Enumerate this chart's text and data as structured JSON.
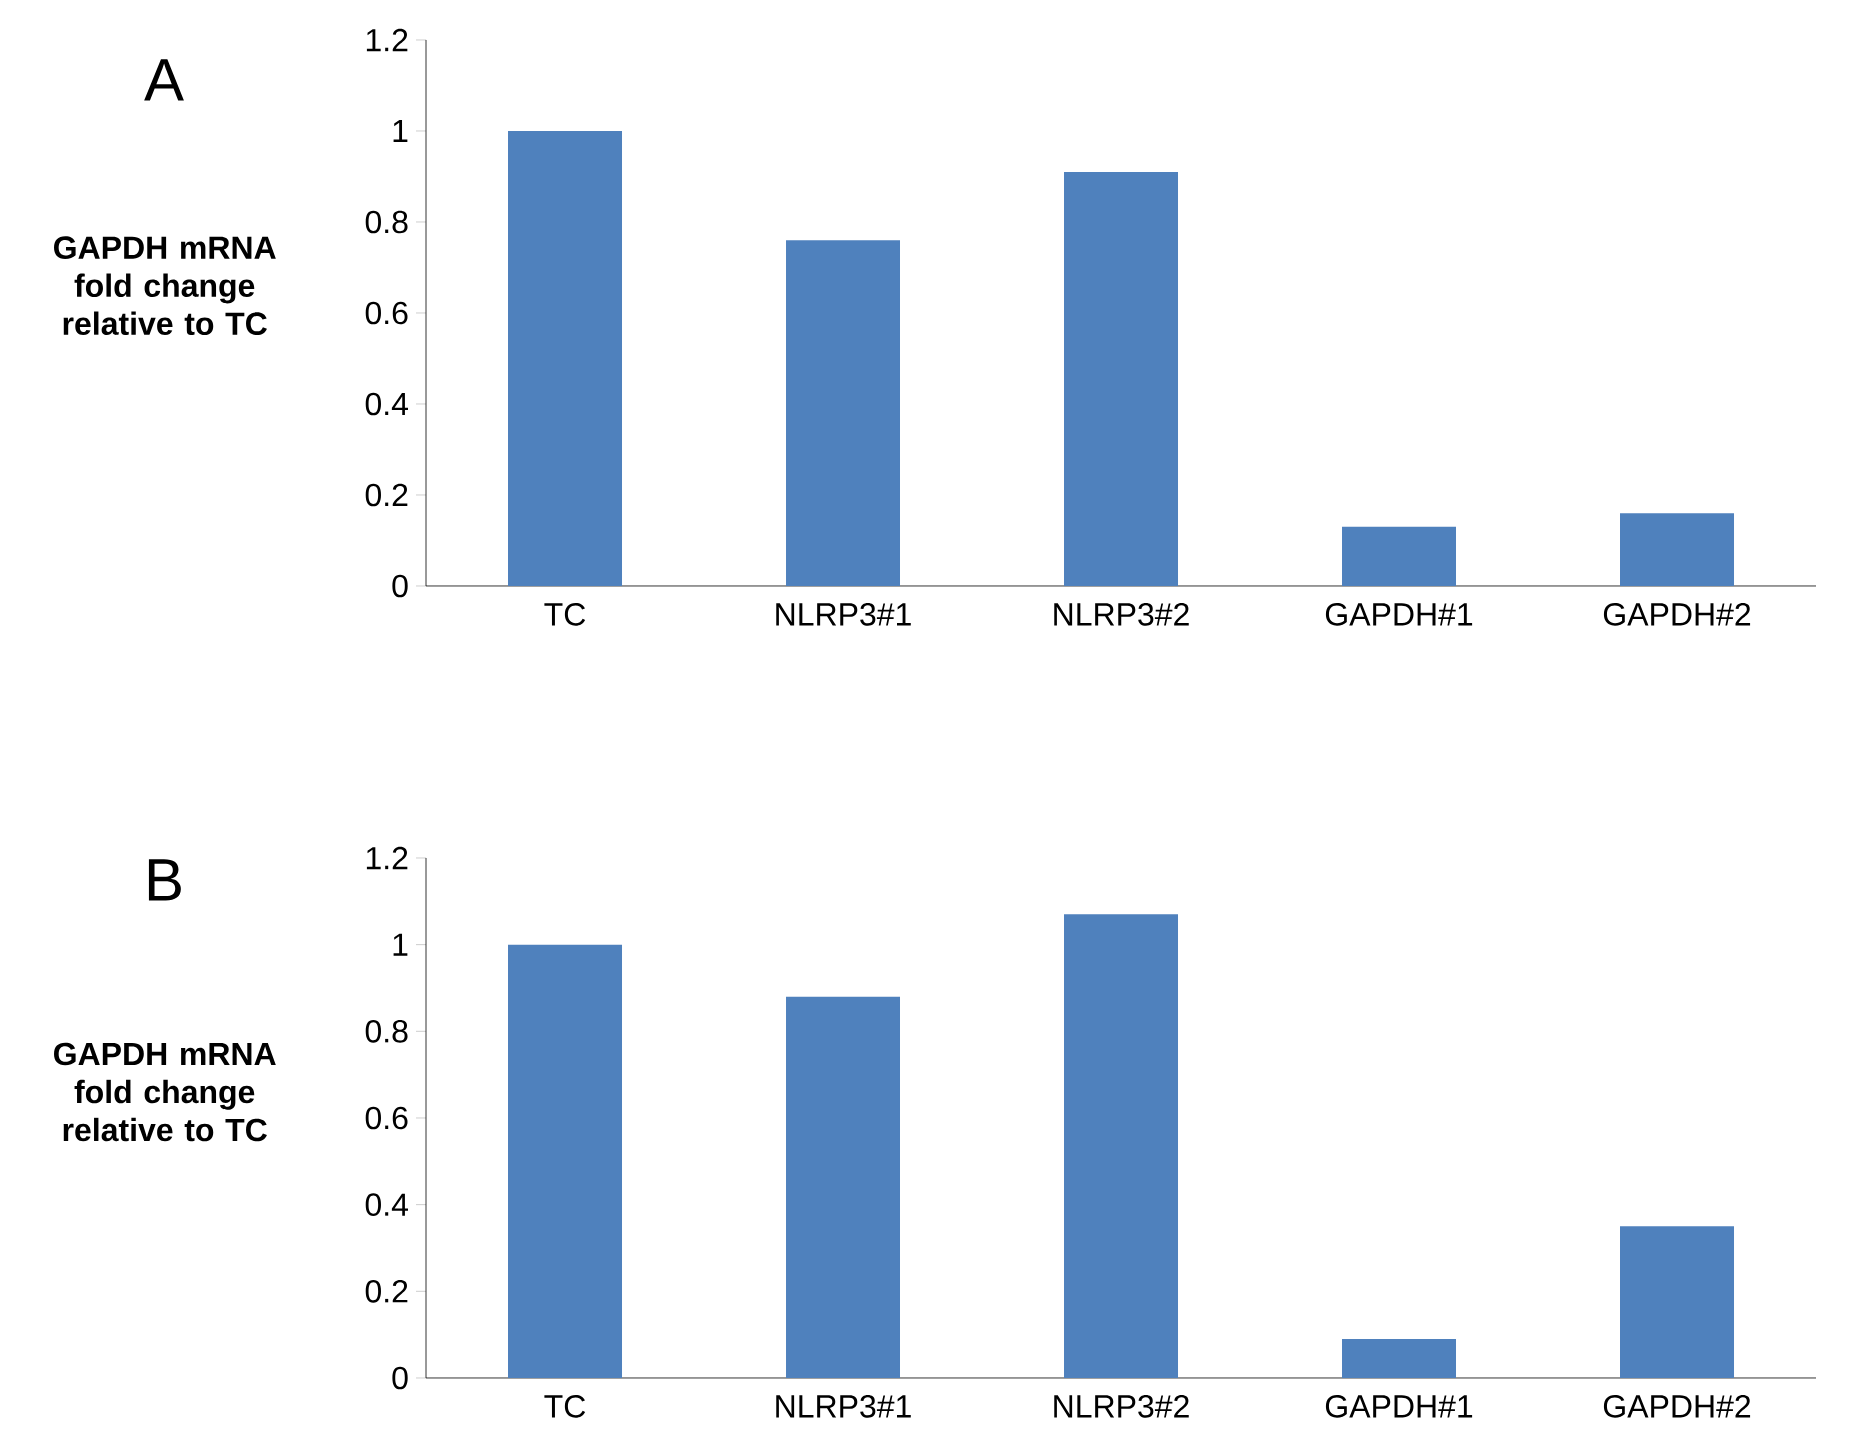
{
  "chart_data": [
    {
      "type": "bar",
      "annotations": [
        "A"
      ],
      "ylabel": "GAPDH mRNA fold change relative to TC",
      "categories": [
        "TC",
        "NLRP3#1",
        "NLRP3#2",
        "GAPDH#1",
        "GAPDH#2"
      ],
      "values": [
        1.0,
        0.76,
        0.91,
        0.13,
        0.16
      ],
      "color": "#4f81bd",
      "ylim": [
        0,
        1.2
      ],
      "yticks": [
        0,
        0.2,
        0.4,
        0.6,
        0.8,
        1,
        1.2
      ],
      "grid": false
    },
    {
      "type": "bar",
      "annotations": [
        "B"
      ],
      "ylabel": "GAPDH mRNA fold change relative to TC",
      "categories": [
        "TC",
        "NLRP3#1",
        "NLRP3#2",
        "GAPDH#1",
        "GAPDH#2"
      ],
      "values": [
        1.0,
        0.88,
        1.07,
        0.09,
        0.35
      ],
      "color": "#4f81bd",
      "ylim": [
        0,
        1.2
      ],
      "yticks": [
        0,
        0.2,
        0.4,
        0.6,
        0.8,
        1,
        1.2
      ],
      "grid": false
    }
  ]
}
